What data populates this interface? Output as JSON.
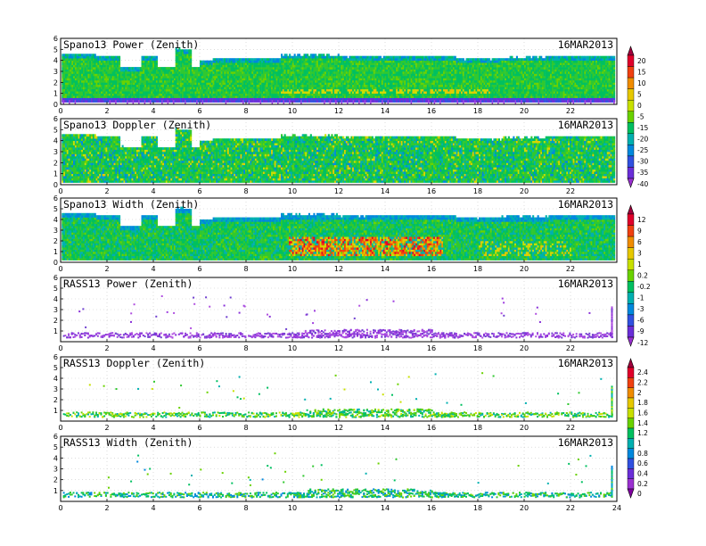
{
  "chart_data": {
    "type": "heatmap",
    "date": "16MAR2013",
    "x_ticks": [
      0,
      2,
      4,
      6,
      8,
      10,
      12,
      14,
      16,
      18,
      20,
      22
    ],
    "x_ticks_last_panel": [
      0,
      2,
      4,
      6,
      8,
      10,
      12,
      14,
      16,
      18,
      20,
      22,
      24
    ],
    "y_ticks": [
      0,
      1,
      2,
      3,
      4,
      5,
      6
    ],
    "y_ticks_rass": [
      1,
      2,
      3,
      4,
      5,
      6
    ],
    "xlim": [
      0,
      24
    ],
    "ylim": [
      0,
      6
    ],
    "grid": true,
    "panels": [
      {
        "title": "Spano13 Power (Zenith)",
        "date": "16MAR2013",
        "kind": "spano_power"
      },
      {
        "title": "Spano13 Doppler (Zenith)",
        "date": "16MAR2013",
        "kind": "spano_doppler"
      },
      {
        "title": "Spano13 Width (Zenith)",
        "date": "16MAR2013",
        "kind": "spano_width"
      },
      {
        "title": "RASS13 Power (Zenith)",
        "date": "16MAR2013",
        "kind": "rass_power"
      },
      {
        "title": "RASS13 Doppler (Zenith)",
        "date": "16MAR2013",
        "kind": "rass_doppler"
      },
      {
        "title": "RASS13 Width (Zenith)",
        "date": "16MAR2013",
        "kind": "rass_width"
      }
    ],
    "colorbars": [
      {
        "name": "power",
        "labels": [
          "20",
          "15",
          "10",
          "5",
          "0",
          "-5",
          "-15",
          "-20",
          "-25",
          "-30",
          "-35",
          "-40"
        ],
        "colors": [
          "#a0003c",
          "#e0002a",
          "#f04010",
          "#f08c00",
          "#e6c800",
          "#c8e000",
          "#6ad200",
          "#00c060",
          "#00b0b0",
          "#0088dd",
          "#3050e0",
          "#6a2ed8",
          "#9a30d0"
        ]
      },
      {
        "name": "width",
        "labels": [
          "12",
          "9",
          "6",
          "3",
          "1",
          "0.2",
          "-0.2",
          "-1",
          "-3",
          "-6",
          "-9",
          "-12"
        ],
        "colors": [
          "#a0003c",
          "#e0002a",
          "#f04010",
          "#f08c00",
          "#e6c800",
          "#c8e000",
          "#6ad200",
          "#00c060",
          "#00b0b0",
          "#0088dd",
          "#3050e0",
          "#6a2ed8",
          "#9a30d0"
        ]
      },
      {
        "name": "doppler",
        "labels": [
          "2.4",
          "2.2",
          "2",
          "1.8",
          "1.6",
          "1.4",
          "1.2",
          "1",
          "0.8",
          "0.6",
          "0.4",
          "0.2",
          "0"
        ],
        "colors": [
          "#a0003c",
          "#e0002a",
          "#f04010",
          "#f08c00",
          "#e6c800",
          "#c8e000",
          "#6ad200",
          "#00c060",
          "#00b0b0",
          "#0088dd",
          "#3050e0",
          "#6a2ed8",
          "#9a30d0",
          "#8000a0"
        ]
      }
    ]
  }
}
